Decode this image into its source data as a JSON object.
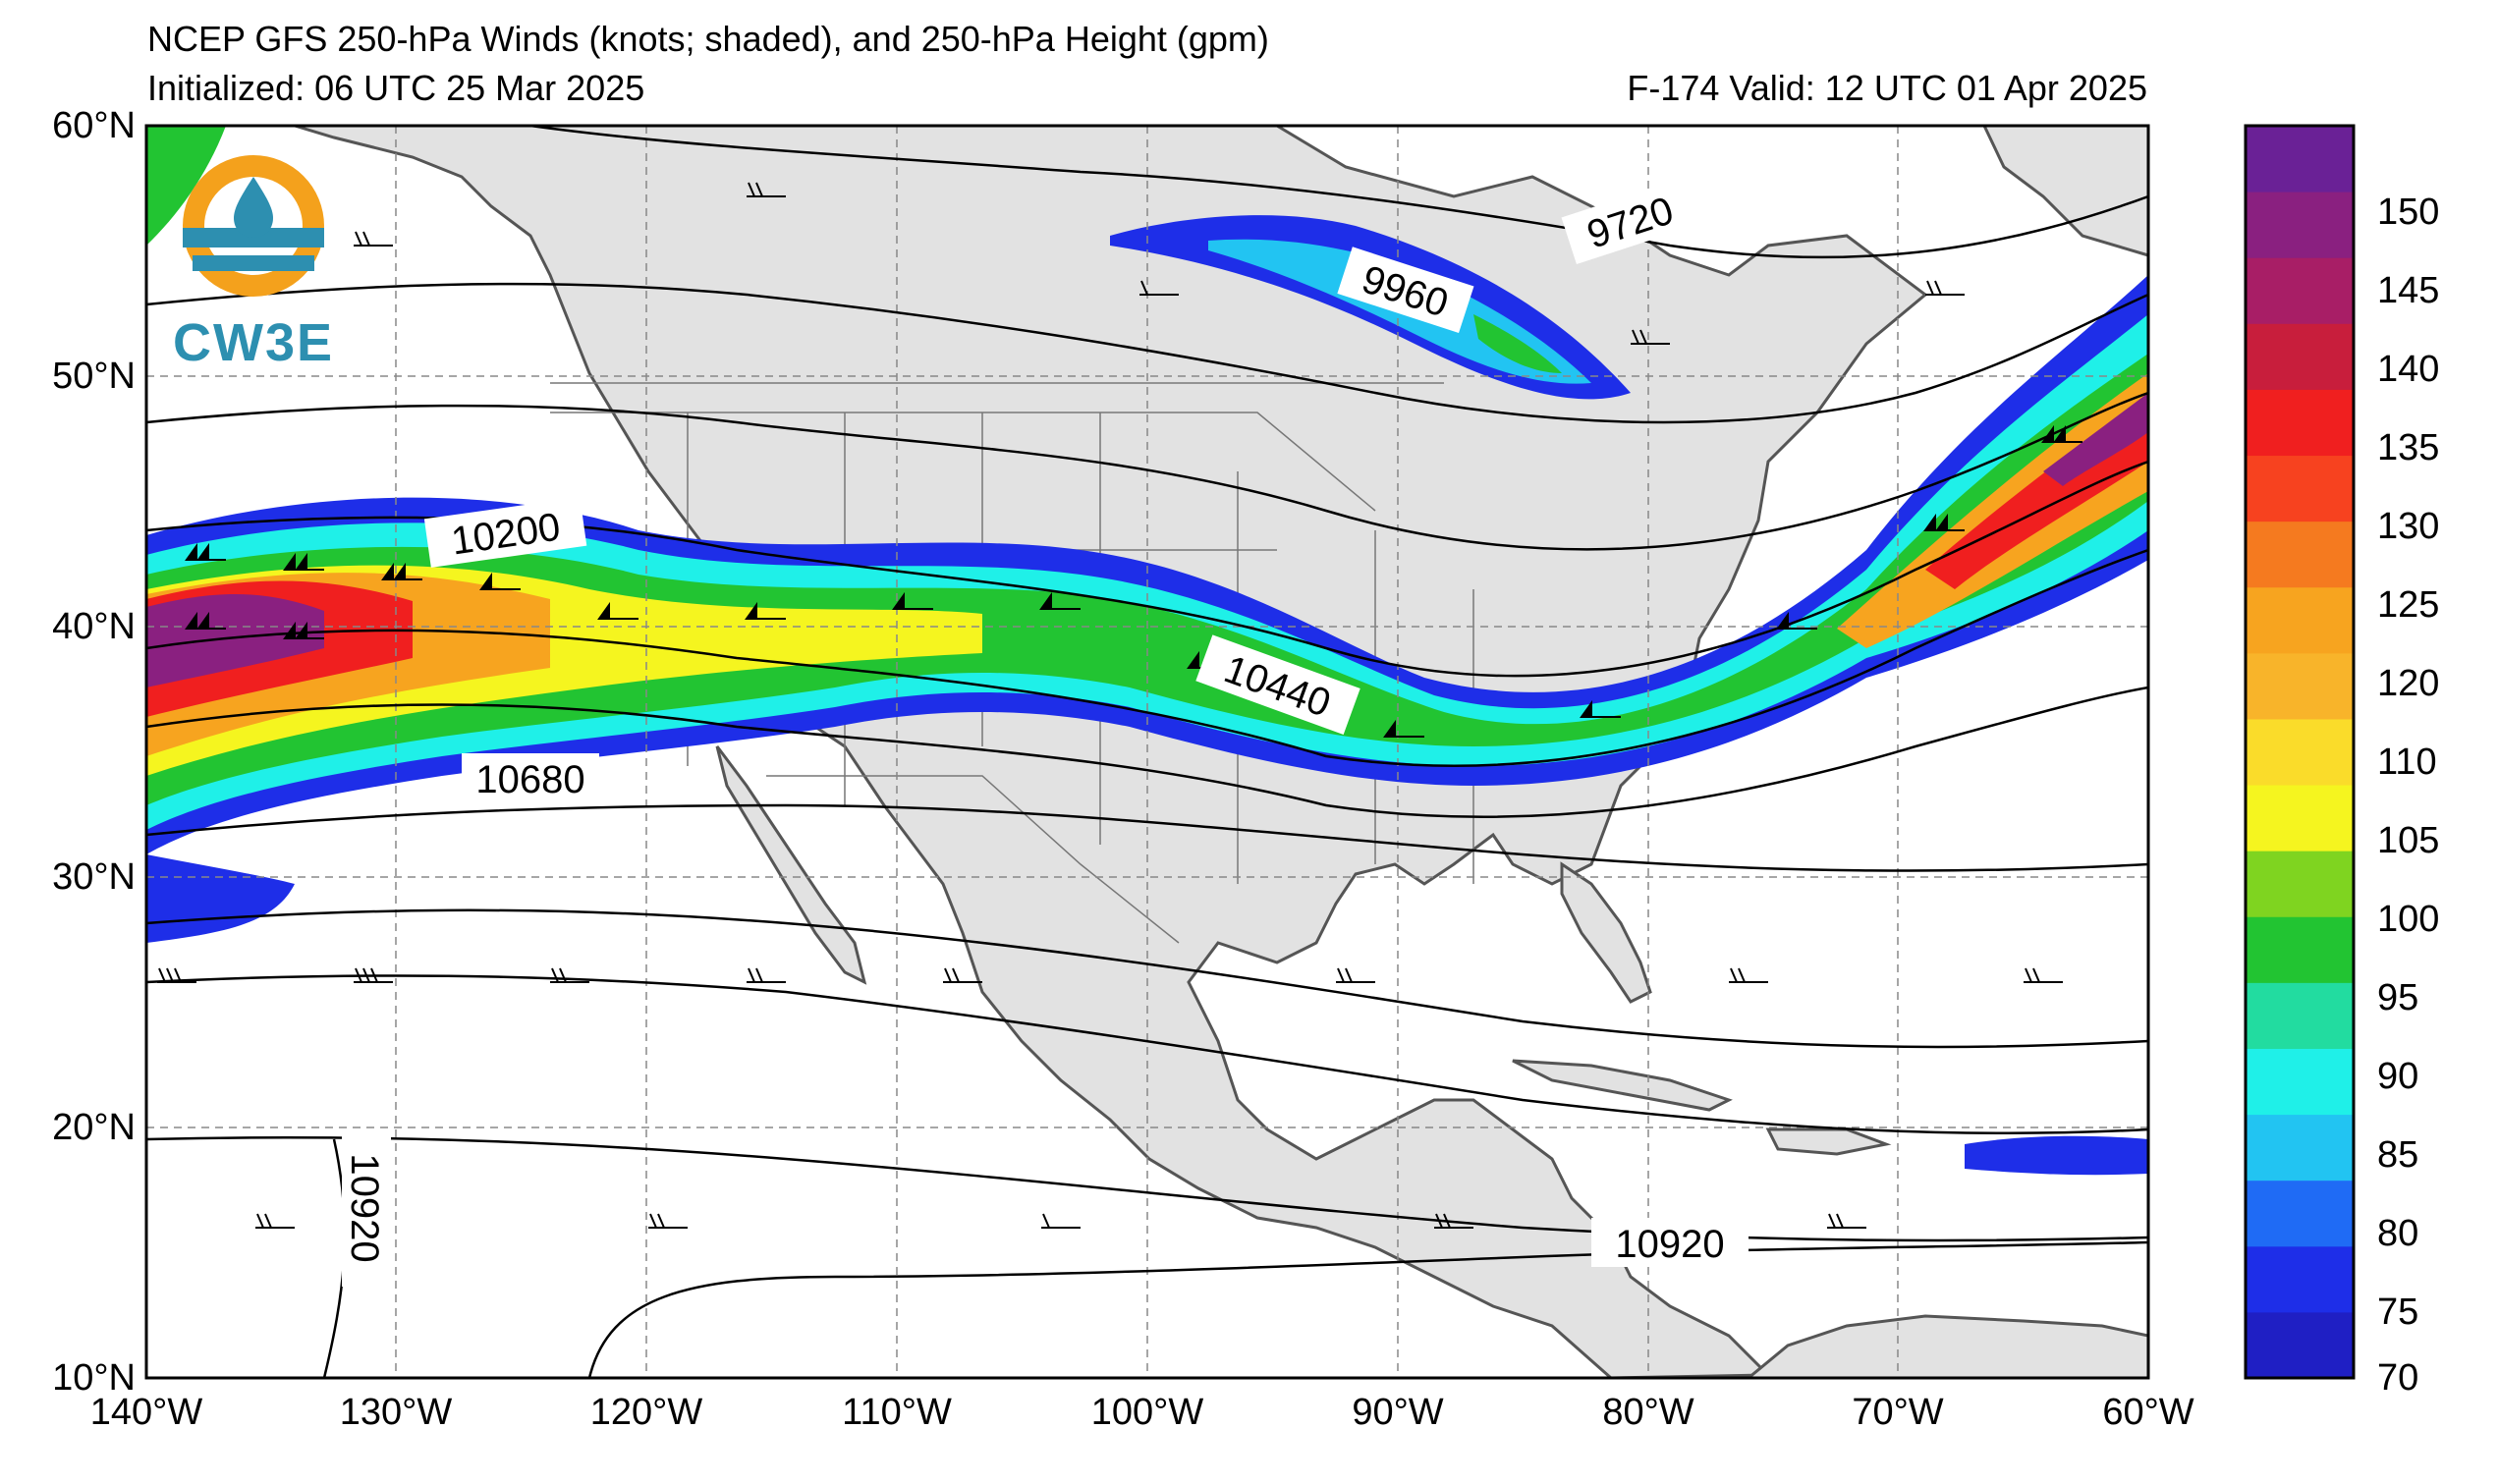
{
  "title": {
    "line1": "NCEP GFS 250-hPa Winds (knots; shaded), and 250-hPa Height (gpm)",
    "initialized": "Initialized: 06 UTC 25 Mar 2025",
    "valid": "F-174  Valid: 12 UTC 01 Apr 2025"
  },
  "axes": {
    "lat_labels": [
      "60°N",
      "50°N",
      "40°N",
      "30°N",
      "20°N",
      "10°N"
    ],
    "lon_labels": [
      "140°W",
      "130°W",
      "120°W",
      "110°W",
      "100°W",
      "90°W",
      "80°W",
      "70°W",
      "60°W"
    ]
  },
  "contour_labels": {
    "c9720": "9720",
    "c9960": "9960",
    "c10200": "10200",
    "c10440": "10440",
    "c10680": "10680",
    "c10920a": "10920",
    "c10920b": "10920"
  },
  "colorbar": {
    "ticks": [
      "150",
      "145",
      "140",
      "135",
      "130",
      "125",
      "120",
      "110",
      "105",
      "100",
      "95",
      "90",
      "85",
      "80",
      "75",
      "70"
    ],
    "colors": [
      "#1f1fc4",
      "#1e2ee8",
      "#1f6bf5",
      "#22c4f2",
      "#1ff0e8",
      "#22dca0",
      "#22c432",
      "#7fd420",
      "#f5f51f",
      "#fadc2a",
      "#f8b42a",
      "#f7a41f",
      "#f57a1f",
      "#f7421f",
      "#f01f1f",
      "#c81e3c",
      "#a81e66",
      "#8a2080",
      "#6a2196"
    ]
  },
  "logo": {
    "text": "CW3E"
  }
}
